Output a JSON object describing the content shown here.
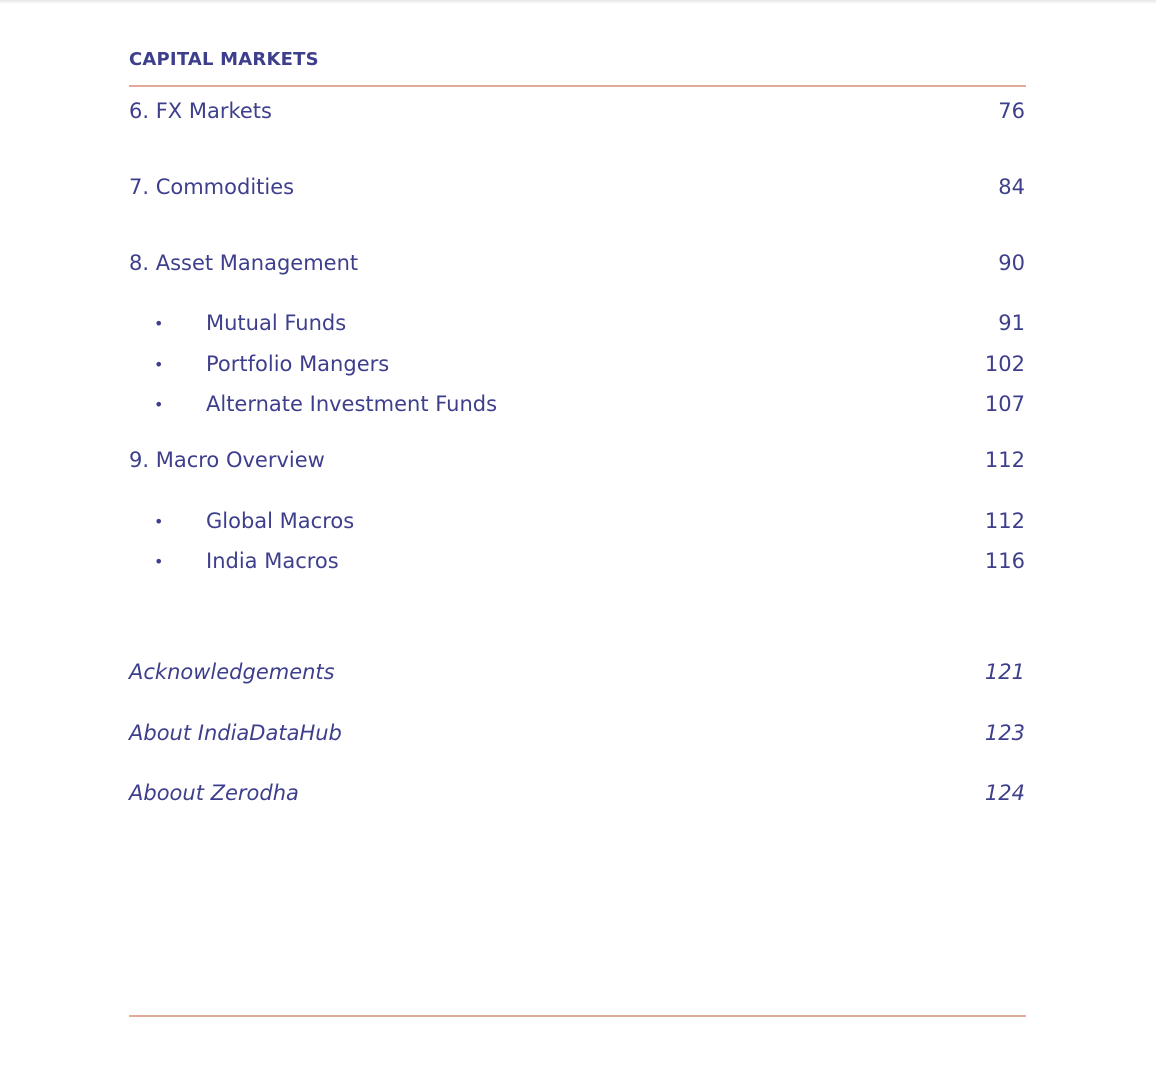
{
  "section_title": "CAPITAL MARKETS",
  "entries": [
    {
      "label": "6. FX Markets",
      "page": "76"
    },
    {
      "label": "7. Commodities",
      "page": "84"
    },
    {
      "label": "8. Asset Management",
      "page": "90"
    },
    {
      "label": "Mutual Funds",
      "page": "91"
    },
    {
      "label": "Portfolio Mangers",
      "page": "102"
    },
    {
      "label": "Alternate Investment Funds",
      "page": "107"
    },
    {
      "label": "9. Macro Overview",
      "page": "112"
    },
    {
      "label": "Global Macros",
      "page": "112"
    },
    {
      "label": "India Macros",
      "page": "116"
    }
  ],
  "back_matter": [
    {
      "label": "Acknowledgements",
      "page": "121"
    },
    {
      "label": "About IndiaDataHub",
      "page": "123"
    },
    {
      "label": "Aboout Zerodha",
      "page": "124"
    }
  ],
  "bullet": "•",
  "colors": {
    "text": "#3e3f8c",
    "rule": "#e2aa9b"
  }
}
